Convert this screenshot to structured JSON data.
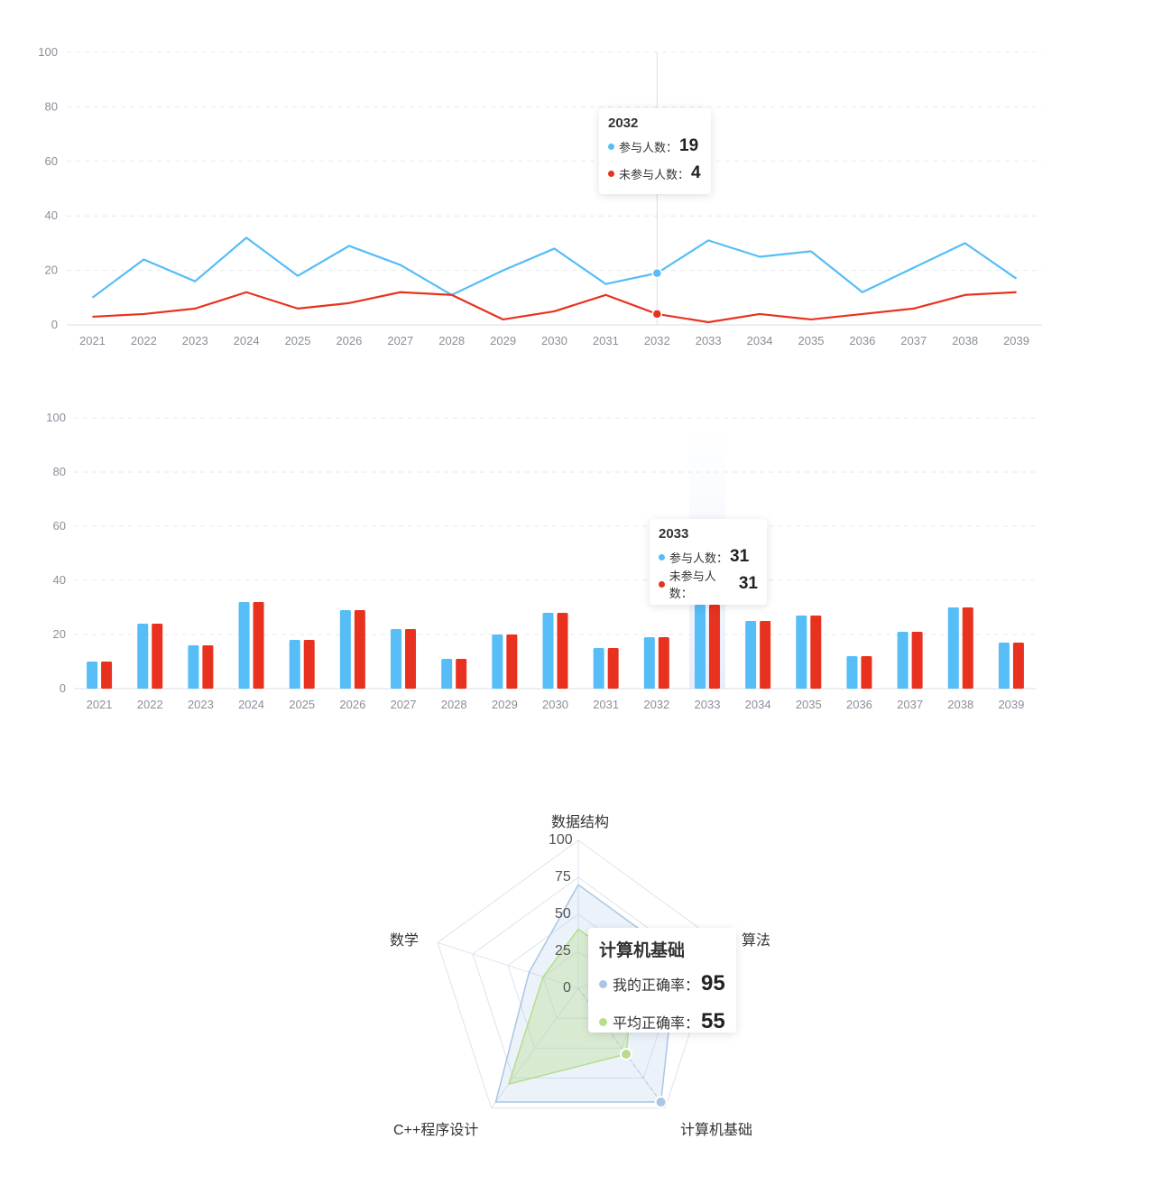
{
  "colors": {
    "series1": "#56bdf7",
    "series2": "#e8321f",
    "radar_mine": "#a9c6e3",
    "radar_avg": "#b6dd8b"
  },
  "line_tooltip": {
    "title": "2032",
    "rows": [
      {
        "label": "参与人数：",
        "value": "19"
      },
      {
        "label": "未参与人数：",
        "value": "4"
      }
    ]
  },
  "bar_tooltip": {
    "title": "2033",
    "rows": [
      {
        "label": "参与人数：",
        "value": "31"
      },
      {
        "label": "未参与人数：",
        "value": "31"
      }
    ]
  },
  "radar_tooltip": {
    "title": "计算机基础",
    "rows": [
      {
        "label": "我的正确率：",
        "value": "95"
      },
      {
        "label": "平均正确率：",
        "value": "55"
      }
    ]
  },
  "chart_data": [
    {
      "type": "line",
      "categories": [
        "2021",
        "2022",
        "2023",
        "2024",
        "2025",
        "2026",
        "2027",
        "2028",
        "2029",
        "2030",
        "2031",
        "2032",
        "2033",
        "2034",
        "2035",
        "2036",
        "2037",
        "2038",
        "2039"
      ],
      "ylim": [
        0,
        100
      ],
      "yticks": [
        0,
        20,
        40,
        60,
        80,
        100
      ],
      "highlight": "2032",
      "series": [
        {
          "name": "参与人数",
          "values": [
            10,
            24,
            16,
            32,
            18,
            29,
            22,
            11,
            20,
            28,
            15,
            19,
            31,
            25,
            27,
            12,
            21,
            30,
            17
          ]
        },
        {
          "name": "未参与人数",
          "values": [
            3,
            4,
            6,
            12,
            6,
            8,
            12,
            11,
            2,
            5,
            11,
            4,
            1,
            4,
            2,
            4,
            6,
            11,
            12
          ]
        }
      ]
    },
    {
      "type": "bar",
      "categories": [
        "2021",
        "2022",
        "2023",
        "2024",
        "2025",
        "2026",
        "2027",
        "2028",
        "2029",
        "2030",
        "2031",
        "2032",
        "2033",
        "2034",
        "2035",
        "2036",
        "2037",
        "2038",
        "2039"
      ],
      "ylim": [
        0,
        100
      ],
      "yticks": [
        0,
        20,
        40,
        60,
        80,
        100
      ],
      "highlight": "2033",
      "series": [
        {
          "name": "参与人数",
          "values": [
            10,
            24,
            16,
            32,
            18,
            29,
            22,
            11,
            20,
            28,
            15,
            19,
            31,
            25,
            27,
            12,
            21,
            30,
            17
          ]
        },
        {
          "name": "未参与人数",
          "values": [
            10,
            24,
            16,
            32,
            18,
            29,
            22,
            11,
            20,
            28,
            15,
            19,
            31,
            25,
            27,
            12,
            21,
            30,
            17
          ]
        }
      ]
    },
    {
      "type": "radar",
      "indicators": [
        "数据结构",
        "算法",
        "计算机基础",
        "C++程序设计",
        "数学"
      ],
      "max": 100,
      "ticks": [
        "0",
        "25",
        "50",
        "75",
        "100"
      ],
      "highlight": "计算机基础",
      "series": [
        {
          "name": "我的正确率",
          "values": [
            70,
            70,
            95,
            95,
            35
          ]
        },
        {
          "name": "平均正确率",
          "values": [
            40,
            40,
            55,
            80,
            25
          ]
        }
      ]
    }
  ]
}
